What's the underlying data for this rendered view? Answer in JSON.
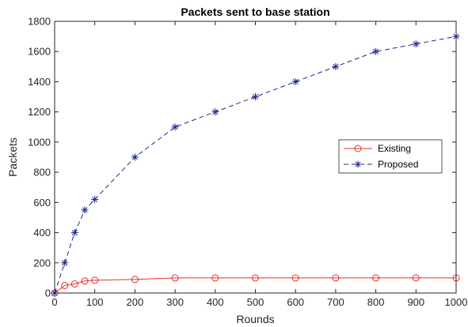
{
  "chart_data": {
    "type": "line",
    "title": "Packets sent to base station",
    "xlabel": "Rounds",
    "ylabel": "Packets",
    "xlim": [
      0,
      1000
    ],
    "ylim": [
      0,
      1800
    ],
    "xticks": [
      0,
      100,
      200,
      300,
      400,
      500,
      600,
      700,
      800,
      900,
      1000
    ],
    "yticks": [
      0,
      200,
      400,
      600,
      800,
      1000,
      1200,
      1400,
      1600,
      1800
    ],
    "grid": false,
    "legend_position": "right-middle",
    "series": [
      {
        "name": "Existing",
        "color": "#e8302a",
        "line_style": "solid",
        "marker": "circle",
        "x": [
          0,
          25,
          50,
          75,
          100,
          200,
          300,
          400,
          500,
          600,
          700,
          800,
          900,
          1000
        ],
        "y": [
          0,
          50,
          60,
          80,
          85,
          90,
          100,
          100,
          100,
          100,
          100,
          100,
          100,
          100
        ]
      },
      {
        "name": "Proposed",
        "color": "#1c2a8c",
        "line_style": "dashed",
        "marker": "asterisk",
        "x": [
          0,
          25,
          50,
          75,
          100,
          200,
          300,
          400,
          500,
          600,
          700,
          800,
          900,
          1000
        ],
        "y": [
          0,
          200,
          400,
          550,
          620,
          900,
          1100,
          1200,
          1300,
          1400,
          1500,
          1600,
          1650,
          1700
        ]
      }
    ]
  }
}
